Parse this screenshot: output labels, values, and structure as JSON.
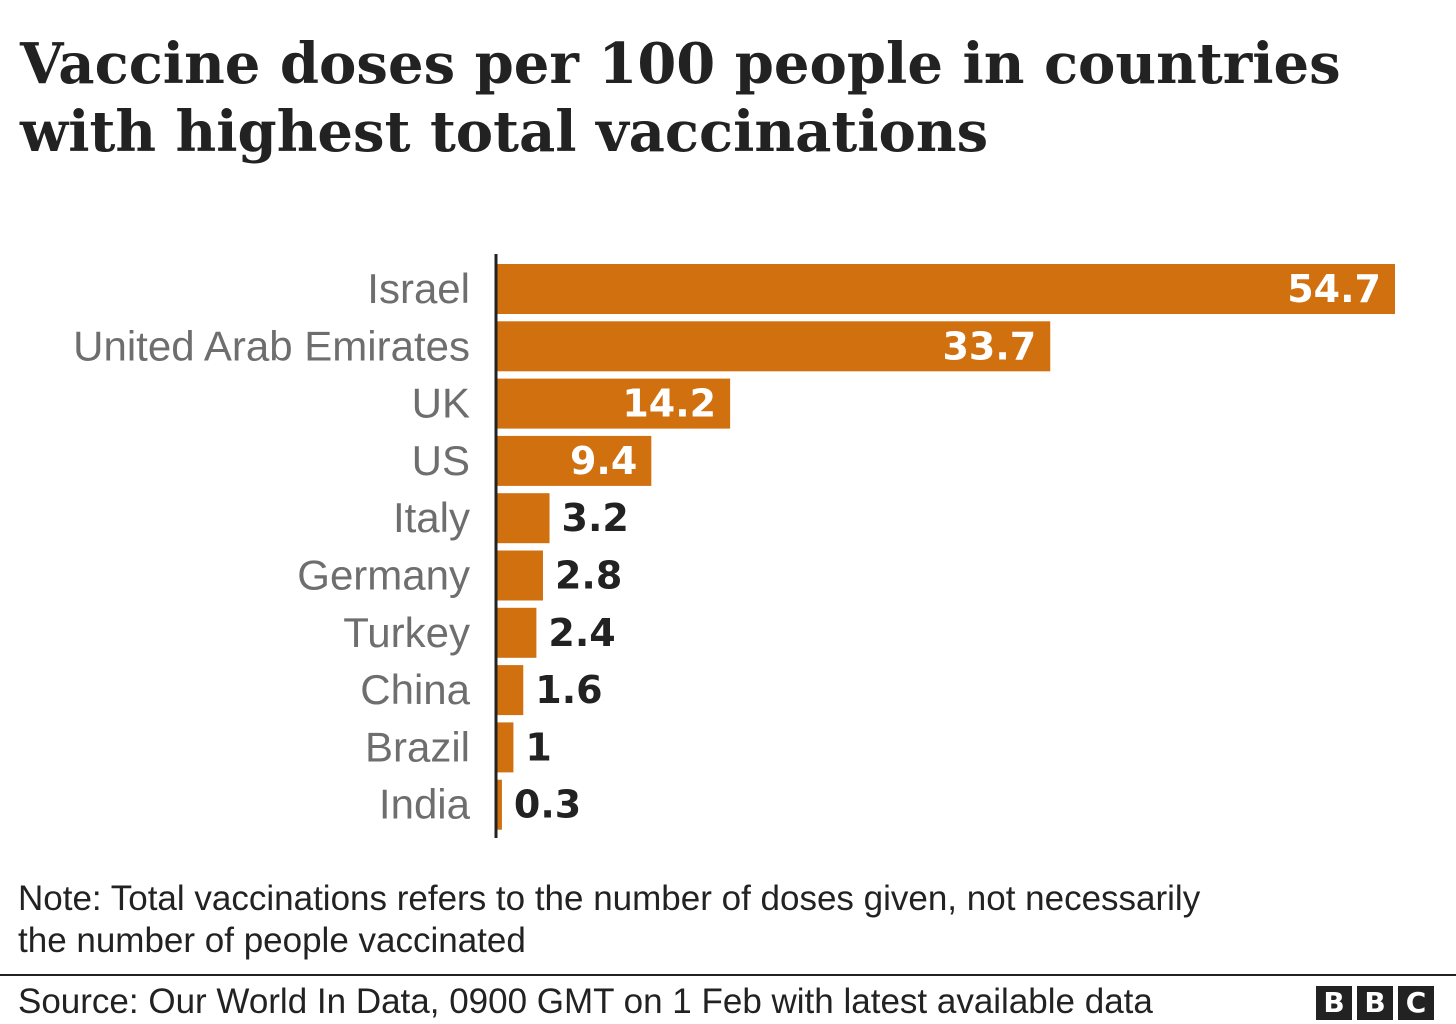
{
  "chart_data": {
    "type": "bar",
    "orientation": "horizontal",
    "title": [
      "Vaccine doses per 100 people in countries",
      "with highest total vaccinations"
    ],
    "categories": [
      "Israel",
      "United Arab Emirates",
      "UK",
      "US",
      "Italy",
      "Germany",
      "Turkey",
      "China",
      "Brazil",
      "India"
    ],
    "values": [
      54.7,
      33.7,
      14.2,
      9.4,
      3.2,
      2.8,
      2.4,
      1.6,
      1,
      0.3
    ],
    "value_labels": [
      "54.7",
      "33.7",
      "14.2",
      "9.4",
      "3.2",
      "2.8",
      "2.4",
      "1.6",
      "1",
      "0.3"
    ],
    "xlim": [
      0,
      55
    ],
    "grid": false,
    "legend": "none",
    "colors": {
      "bar": "#d1700e",
      "label_inside": "#ffffff",
      "label_outside": "#222222",
      "category_text": "#6e6e6e",
      "axis": "#222222"
    }
  },
  "note": [
    "Note: Total vaccinations refers to the number of doses given, not necessarily",
    "the number of people vaccinated"
  ],
  "source": "Source: Our World In Data, 0900 GMT on 1 Feb with latest available data",
  "logo": [
    "B",
    "B",
    "C"
  ]
}
